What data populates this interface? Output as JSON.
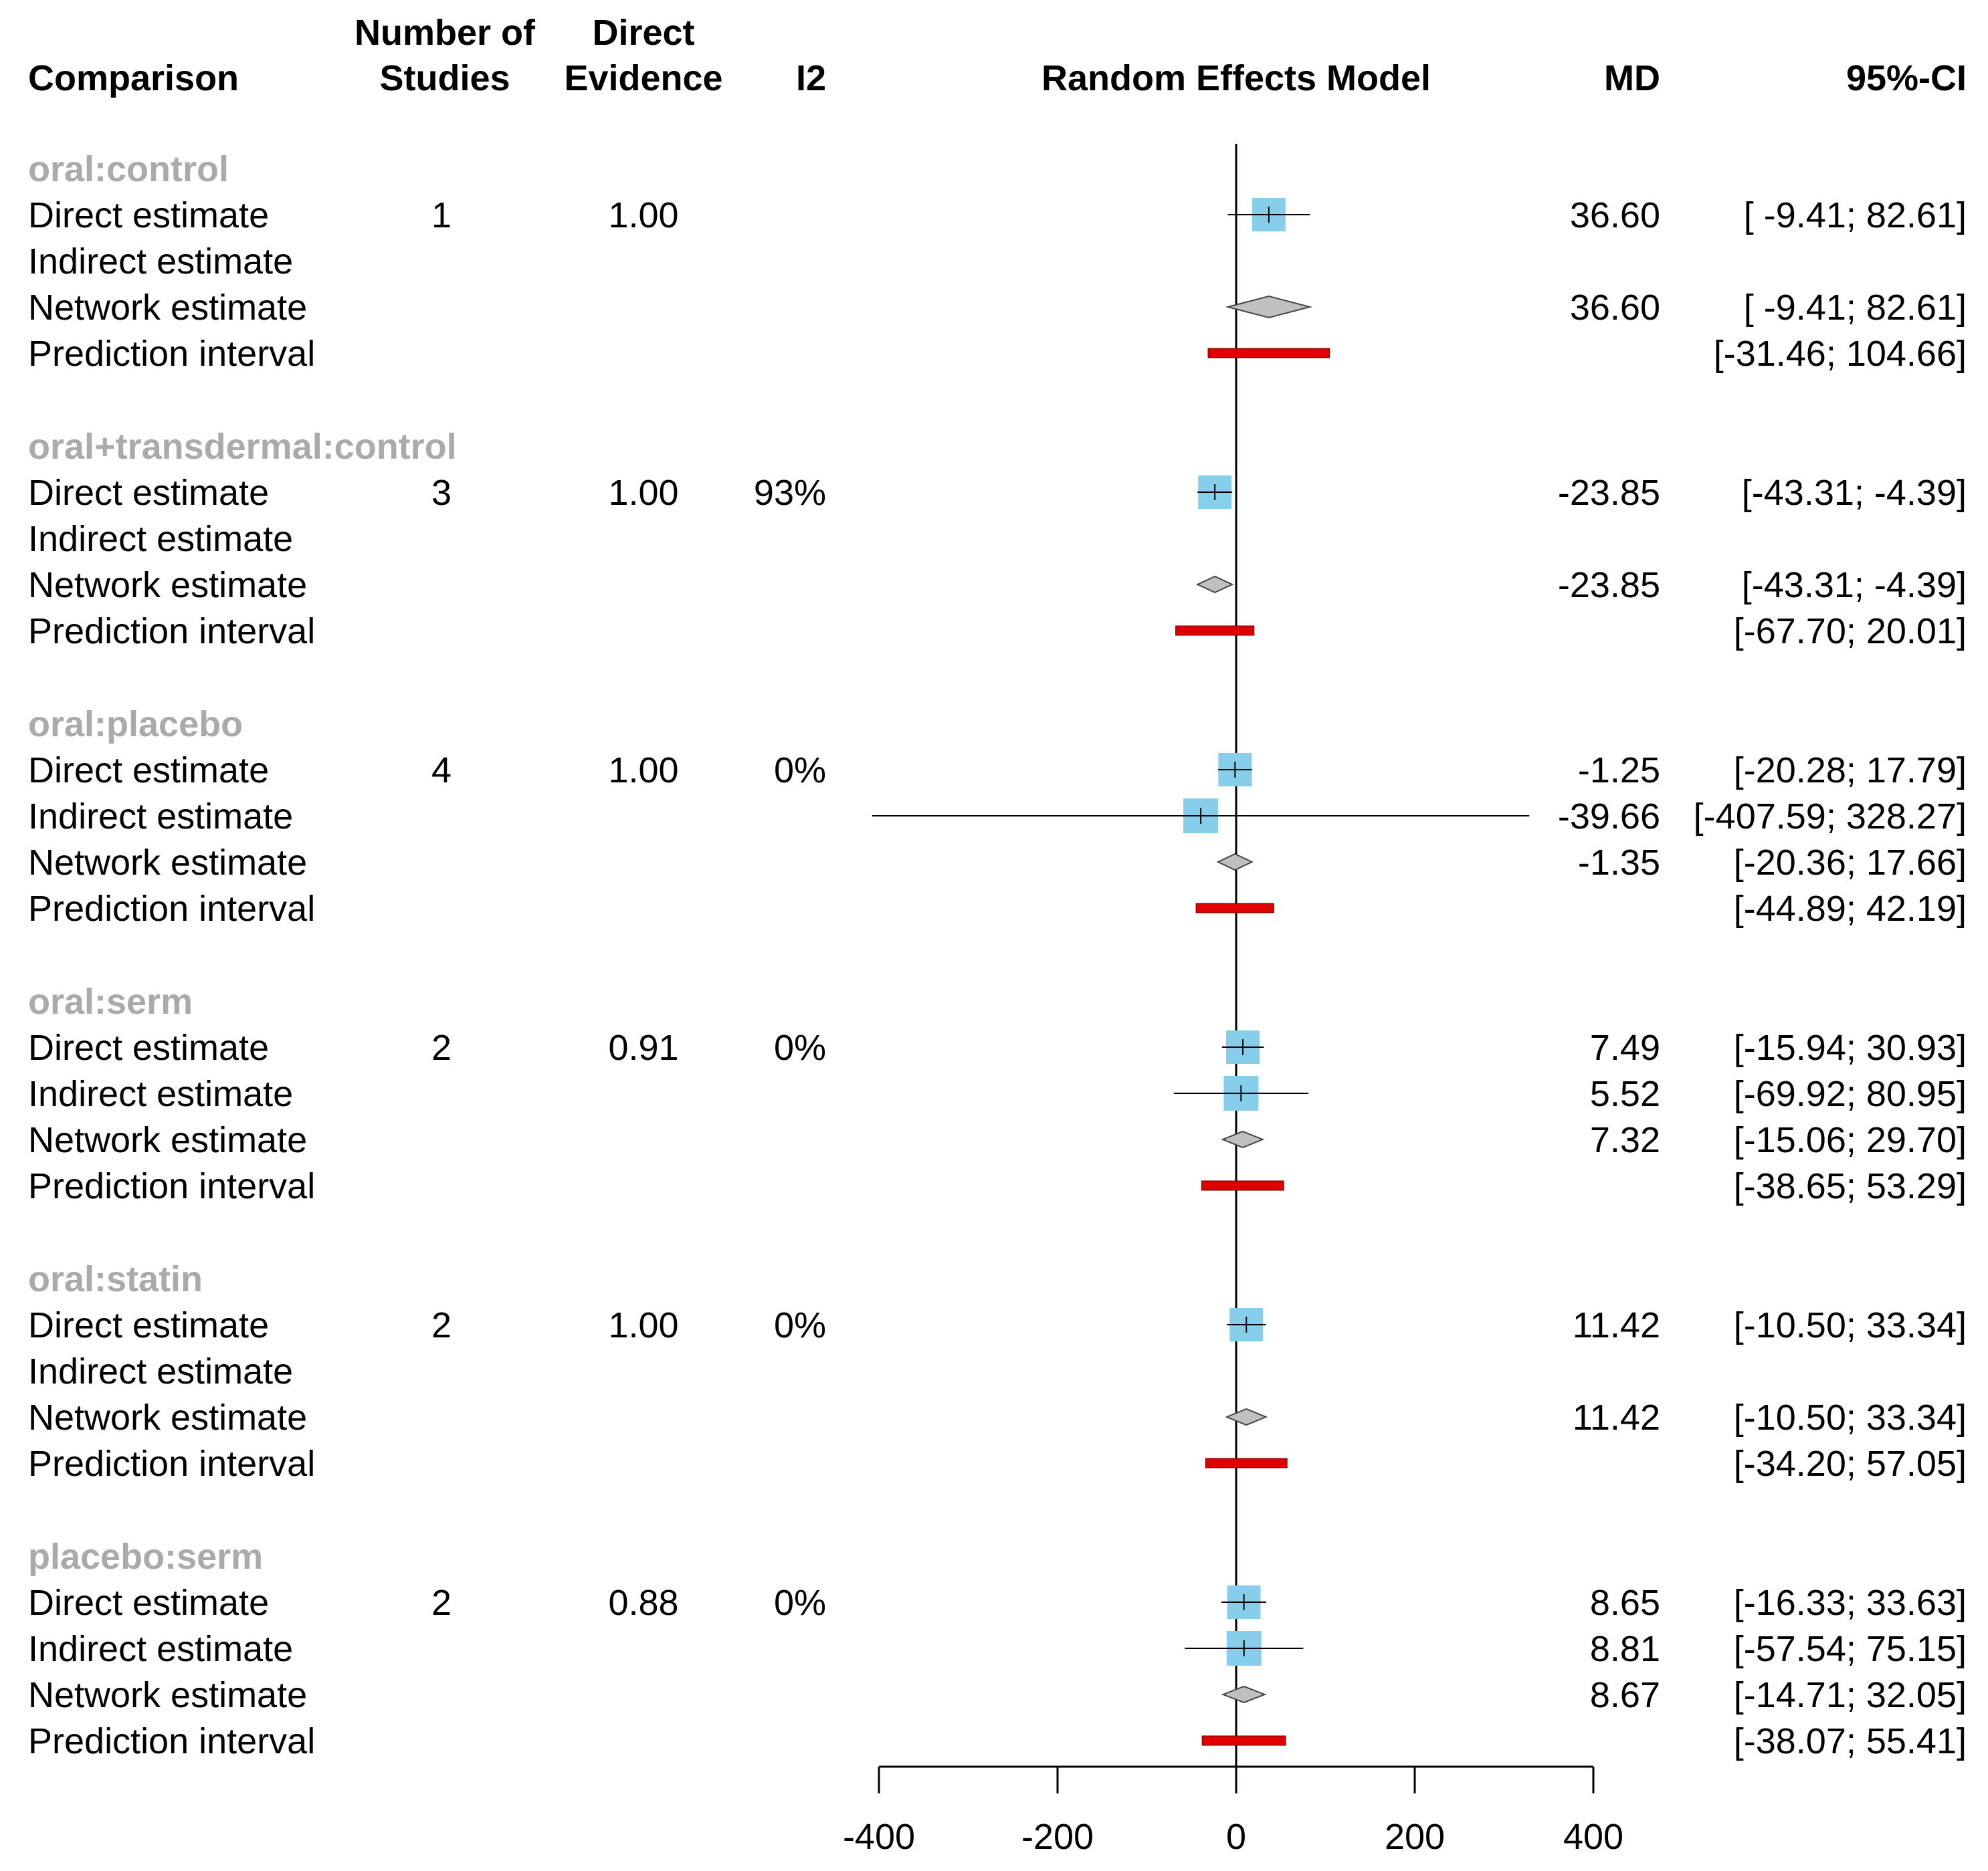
{
  "headers": {
    "comparison": "Comparison",
    "studies_line1": "Number of",
    "studies_line2": "Studies",
    "direct_line1": "Direct",
    "direct_line2": "Evidence",
    "i2": "I2",
    "model": "Random Effects Model",
    "md": "MD",
    "ci": "95%-CI"
  },
  "colors": {
    "direct_indirect_square": "#87ceeb",
    "network_diamond": "#c0c0c0",
    "prediction_bar": "#e00000",
    "group_label": "#aaaaaa"
  },
  "chart_data": {
    "type": "forest",
    "title": "Random Effects Model",
    "xlabel": "",
    "xlim": [
      -400,
      400
    ],
    "xticks": [
      -400,
      -200,
      0,
      200,
      400
    ],
    "reference_line": 0,
    "groups": [
      {
        "label": "oral:control",
        "rows": [
          {
            "type": "direct",
            "label": "Direct estimate",
            "studies": "1",
            "evidence": "1.00",
            "i2": "",
            "md": 36.6,
            "lo": -9.41,
            "hi": 82.61,
            "md_text": "36.60",
            "ci_text": "[ -9.41;  82.61]"
          },
          {
            "type": "indirect",
            "label": "Indirect estimate",
            "studies": "",
            "evidence": "",
            "i2": "",
            "md": null,
            "lo": null,
            "hi": null,
            "md_text": "",
            "ci_text": ""
          },
          {
            "type": "network",
            "label": "Network estimate",
            "studies": "",
            "evidence": "",
            "i2": "",
            "md": 36.6,
            "lo": -9.41,
            "hi": 82.61,
            "md_text": "36.60",
            "ci_text": "[ -9.41;  82.61]"
          },
          {
            "type": "prediction",
            "label": "Prediction interval",
            "studies": "",
            "evidence": "",
            "i2": "",
            "md": null,
            "lo": -31.46,
            "hi": 104.66,
            "md_text": "",
            "ci_text": "[-31.46; 104.66]"
          }
        ]
      },
      {
        "label": "oral+transdermal:control",
        "rows": [
          {
            "type": "direct",
            "label": "Direct estimate",
            "studies": "3",
            "evidence": "1.00",
            "i2": "93%",
            "md": -23.85,
            "lo": -43.31,
            "hi": -4.39,
            "md_text": "-23.85",
            "ci_text": "[-43.31;  -4.39]"
          },
          {
            "type": "indirect",
            "label": "Indirect estimate",
            "studies": "",
            "evidence": "",
            "i2": "",
            "md": null,
            "lo": null,
            "hi": null,
            "md_text": "",
            "ci_text": ""
          },
          {
            "type": "network",
            "label": "Network estimate",
            "studies": "",
            "evidence": "",
            "i2": "",
            "md": -23.85,
            "lo": -43.31,
            "hi": -4.39,
            "md_text": "-23.85",
            "ci_text": "[-43.31;  -4.39]"
          },
          {
            "type": "prediction",
            "label": "Prediction interval",
            "studies": "",
            "evidence": "",
            "i2": "",
            "md": null,
            "lo": -67.7,
            "hi": 20.01,
            "md_text": "",
            "ci_text": "[-67.70;  20.01]"
          }
        ]
      },
      {
        "label": "oral:placebo",
        "rows": [
          {
            "type": "direct",
            "label": "Direct estimate",
            "studies": "4",
            "evidence": "1.00",
            "i2": "0%",
            "md": -1.25,
            "lo": -20.28,
            "hi": 17.79,
            "md_text": "-1.25",
            "ci_text": "[-20.28;  17.79]"
          },
          {
            "type": "indirect",
            "label": "Indirect estimate",
            "studies": "",
            "evidence": "",
            "i2": "",
            "md": -39.66,
            "lo": -407.59,
            "hi": 328.27,
            "md_text": "-39.66",
            "ci_text": "[-407.59; 328.27]"
          },
          {
            "type": "network",
            "label": "Network estimate",
            "studies": "",
            "evidence": "",
            "i2": "",
            "md": -1.35,
            "lo": -20.36,
            "hi": 17.66,
            "md_text": "-1.35",
            "ci_text": "[-20.36;  17.66]"
          },
          {
            "type": "prediction",
            "label": "Prediction interval",
            "studies": "",
            "evidence": "",
            "i2": "",
            "md": null,
            "lo": -44.89,
            "hi": 42.19,
            "md_text": "",
            "ci_text": "[-44.89;  42.19]"
          }
        ]
      },
      {
        "label": "oral:serm",
        "rows": [
          {
            "type": "direct",
            "label": "Direct estimate",
            "studies": "2",
            "evidence": "0.91",
            "i2": "0%",
            "md": 7.49,
            "lo": -15.94,
            "hi": 30.93,
            "md_text": "7.49",
            "ci_text": "[-15.94;  30.93]"
          },
          {
            "type": "indirect",
            "label": "Indirect estimate",
            "studies": "",
            "evidence": "",
            "i2": "",
            "md": 5.52,
            "lo": -69.92,
            "hi": 80.95,
            "md_text": "5.52",
            "ci_text": "[-69.92;  80.95]"
          },
          {
            "type": "network",
            "label": "Network estimate",
            "studies": "",
            "evidence": "",
            "i2": "",
            "md": 7.32,
            "lo": -15.06,
            "hi": 29.7,
            "md_text": "7.32",
            "ci_text": "[-15.06;  29.70]"
          },
          {
            "type": "prediction",
            "label": "Prediction interval",
            "studies": "",
            "evidence": "",
            "i2": "",
            "md": null,
            "lo": -38.65,
            "hi": 53.29,
            "md_text": "",
            "ci_text": "[-38.65;  53.29]"
          }
        ]
      },
      {
        "label": "oral:statin",
        "rows": [
          {
            "type": "direct",
            "label": "Direct estimate",
            "studies": "2",
            "evidence": "1.00",
            "i2": "0%",
            "md": 11.42,
            "lo": -10.5,
            "hi": 33.34,
            "md_text": "11.42",
            "ci_text": "[-10.50;  33.34]"
          },
          {
            "type": "indirect",
            "label": "Indirect estimate",
            "studies": "",
            "evidence": "",
            "i2": "",
            "md": null,
            "lo": null,
            "hi": null,
            "md_text": "",
            "ci_text": ""
          },
          {
            "type": "network",
            "label": "Network estimate",
            "studies": "",
            "evidence": "",
            "i2": "",
            "md": 11.42,
            "lo": -10.5,
            "hi": 33.34,
            "md_text": "11.42",
            "ci_text": "[-10.50;  33.34]"
          },
          {
            "type": "prediction",
            "label": "Prediction interval",
            "studies": "",
            "evidence": "",
            "i2": "",
            "md": null,
            "lo": -34.2,
            "hi": 57.05,
            "md_text": "",
            "ci_text": "[-34.20;  57.05]"
          }
        ]
      },
      {
        "label": "placebo:serm",
        "rows": [
          {
            "type": "direct",
            "label": "Direct estimate",
            "studies": "2",
            "evidence": "0.88",
            "i2": "0%",
            "md": 8.65,
            "lo": -16.33,
            "hi": 33.63,
            "md_text": "8.65",
            "ci_text": "[-16.33;  33.63]"
          },
          {
            "type": "indirect",
            "label": "Indirect estimate",
            "studies": "",
            "evidence": "",
            "i2": "",
            "md": 8.81,
            "lo": -57.54,
            "hi": 75.15,
            "md_text": "8.81",
            "ci_text": "[-57.54;  75.15]"
          },
          {
            "type": "network",
            "label": "Network estimate",
            "studies": "",
            "evidence": "",
            "i2": "",
            "md": 8.67,
            "lo": -14.71,
            "hi": 32.05,
            "md_text": "8.67",
            "ci_text": "[-14.71;  32.05]"
          },
          {
            "type": "prediction",
            "label": "Prediction interval",
            "studies": "",
            "evidence": "",
            "i2": "",
            "md": null,
            "lo": -38.07,
            "hi": 55.41,
            "md_text": "",
            "ci_text": "[-38.07;  55.41]"
          }
        ]
      }
    ]
  }
}
